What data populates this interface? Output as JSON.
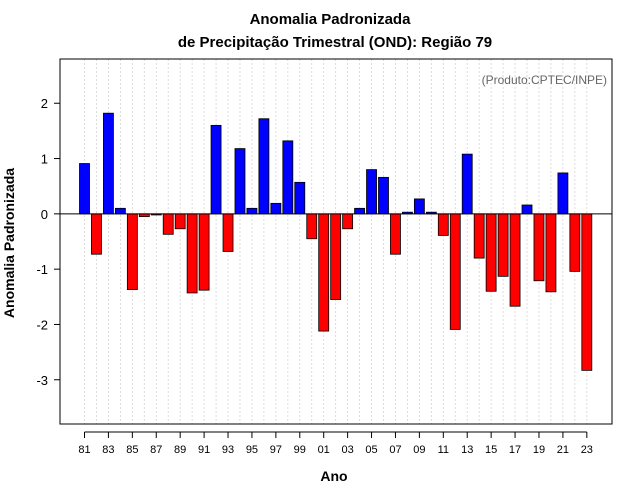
{
  "chart_data": {
    "type": "bar",
    "title": "Anomalia Padronizada",
    "subtitle": "de Precipitação Trimestral (OND): Região 79",
    "xlabel": "Ano",
    "ylabel": "Anomalia Padronizada",
    "annotation": "(Produto:CPTEC/INPE)",
    "ylim": [
      -3.8,
      2.8
    ],
    "yticks": [
      -3,
      -2,
      -1,
      0,
      1,
      2
    ],
    "xtick_labels": [
      "81",
      "83",
      "85",
      "87",
      "89",
      "91",
      "93",
      "95",
      "97",
      "99",
      "01",
      "03",
      "05",
      "07",
      "09",
      "11",
      "13",
      "15",
      "17",
      "19",
      "21",
      "23"
    ],
    "categories": [
      "1981",
      "1982",
      "1983",
      "1984",
      "1985",
      "1986",
      "1987",
      "1988",
      "1989",
      "1990",
      "1991",
      "1992",
      "1993",
      "1994",
      "1995",
      "1996",
      "1997",
      "1998",
      "1999",
      "2000",
      "2001",
      "2002",
      "2003",
      "2004",
      "2005",
      "2006",
      "2007",
      "2008",
      "2009",
      "2010",
      "2011",
      "2012",
      "2013",
      "2014",
      "2015",
      "2016",
      "2017",
      "2018",
      "2019",
      "2020",
      "2021",
      "2022",
      "2023"
    ],
    "values": [
      0.91,
      -0.73,
      1.82,
      0.1,
      -1.37,
      -0.05,
      -0.02,
      -0.37,
      -0.27,
      -1.43,
      -1.38,
      1.6,
      -0.68,
      1.18,
      0.1,
      1.72,
      0.19,
      1.32,
      0.57,
      -0.45,
      -2.12,
      -1.55,
      -0.27,
      0.1,
      0.8,
      0.66,
      -0.73,
      0.03,
      0.27,
      0.03,
      -0.39,
      -2.09,
      1.08,
      -0.8,
      -1.4,
      -1.13,
      -1.67,
      0.16,
      -1.21,
      -1.41,
      0.74,
      -1.04,
      -2.83
    ],
    "colors": {
      "positive": "#0000ff",
      "negative": "#ff0000",
      "grid": "#d3d3d3"
    },
    "grid": true
  }
}
